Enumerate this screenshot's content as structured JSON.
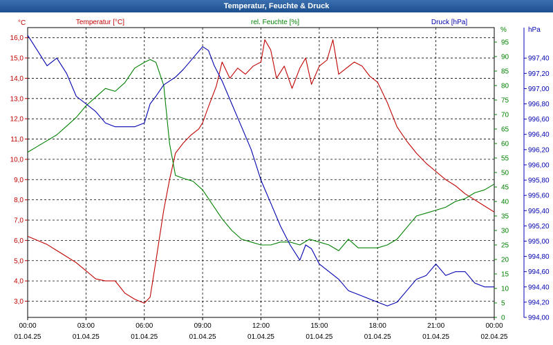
{
  "chart_data": {
    "type": "line",
    "title": "Temperatur, Feuchte & Druck",
    "x_ticks": [
      {
        "time": "00:00",
        "date": "01.04.25"
      },
      {
        "time": "03:00",
        "date": "01.04.25"
      },
      {
        "time": "06:00",
        "date": "01.04.25"
      },
      {
        "time": "09:00",
        "date": "01.04.25"
      },
      {
        "time": "12:00",
        "date": "01.04.25"
      },
      {
        "time": "15:00",
        "date": "01.04.25"
      },
      {
        "time": "18:00",
        "date": "01.04.25"
      },
      {
        "time": "21:00",
        "date": "01.04.25"
      },
      {
        "time": "00:00",
        "date": "02.04.25"
      }
    ],
    "xlim_hours": [
      0,
      24
    ],
    "grid": true,
    "axes": {
      "temperature": {
        "label": "Temperatur [°C]",
        "unit": "°C",
        "ylim": [
          2.2,
          16.5
        ],
        "color": "#c00000",
        "ticks": [
          "3,0",
          "4,0",
          "5,0",
          "6,0",
          "7,0",
          "8,0",
          "9,0",
          "10,0",
          "11,0",
          "12,0",
          "13,0",
          "14,0",
          "15,0",
          "16,0"
        ],
        "tick_values": [
          3,
          4,
          5,
          6,
          7,
          8,
          9,
          10,
          11,
          12,
          13,
          14,
          15,
          16
        ]
      },
      "humidity": {
        "label": "rel. Feuchte [%]",
        "unit": "%",
        "ylim": [
          0,
          100
        ],
        "color": "#008000",
        "ticks": [
          "0",
          "5",
          "10",
          "15",
          "20",
          "25",
          "30",
          "35",
          "40",
          "45",
          "50",
          "55",
          "60",
          "65",
          "70",
          "75",
          "80",
          "85",
          "90",
          "95"
        ],
        "tick_values": [
          0,
          5,
          10,
          15,
          20,
          25,
          30,
          35,
          40,
          45,
          50,
          55,
          60,
          65,
          70,
          75,
          80,
          85,
          90,
          95
        ]
      },
      "pressure": {
        "label": "Druck [hPa]",
        "unit": "hPa",
        "ylim": [
          994.0,
          997.8
        ],
        "color": "#0000b0",
        "ticks": [
          "994,00",
          "994,20",
          "994,40",
          "994,60",
          "994,80",
          "995,00",
          "995,20",
          "995,40",
          "995,60",
          "995,80",
          "996,00",
          "996,20",
          "996,40",
          "996,60",
          "996,80",
          "997,00",
          "997,20",
          "997,40"
        ],
        "tick_values": [
          994.0,
          994.2,
          994.4,
          994.6,
          994.8,
          995.0,
          995.2,
          995.4,
          995.6,
          995.8,
          996.0,
          996.2,
          996.4,
          996.6,
          996.8,
          997.0,
          997.2,
          997.4
        ]
      }
    },
    "series": [
      {
        "name": "Temperatur [°C]",
        "axis": "temperature",
        "color": "#c00000",
        "x": [
          0,
          0.5,
          1,
          1.5,
          2,
          2.5,
          3,
          3.5,
          4,
          4.5,
          5,
          5.5,
          6,
          6.3,
          6.6,
          7,
          7.3,
          7.6,
          8,
          8.4,
          8.8,
          9,
          9.3,
          9.7,
          10,
          10.4,
          10.8,
          11.2,
          11.6,
          12,
          12.2,
          12.5,
          12.8,
          13.2,
          13.6,
          14,
          14.3,
          14.6,
          15,
          15.4,
          15.7,
          16,
          16.4,
          16.8,
          17.2,
          17.6,
          18,
          18.5,
          19,
          19.5,
          20,
          20.5,
          21,
          21.5,
          22,
          22.5,
          23,
          23.5,
          24
        ],
        "y": [
          6.2,
          6.0,
          5.8,
          5.5,
          5.2,
          4.9,
          4.5,
          4.1,
          4.0,
          4.0,
          3.4,
          3.1,
          2.9,
          3.2,
          5.0,
          7.5,
          9.0,
          10.3,
          10.8,
          11.2,
          11.5,
          11.8,
          12.6,
          13.6,
          14.8,
          14.0,
          14.5,
          14.2,
          14.6,
          14.8,
          15.9,
          15.4,
          14.0,
          14.6,
          13.5,
          14.5,
          15.0,
          13.7,
          14.6,
          14.9,
          15.9,
          14.2,
          14.5,
          14.8,
          14.6,
          14.1,
          13.8,
          12.8,
          11.6,
          10.9,
          10.3,
          9.8,
          9.4,
          9.0,
          8.7,
          8.3,
          8.0,
          7.7,
          7.4
        ]
      },
      {
        "name": "rel. Feuchte [%]",
        "axis": "humidity",
        "color": "#008000",
        "x": [
          0,
          0.5,
          1,
          1.5,
          2,
          2.5,
          3,
          3.5,
          4,
          4.5,
          5,
          5.5,
          6,
          6.3,
          6.6,
          7,
          7.3,
          7.6,
          8,
          8.5,
          9,
          9.5,
          10,
          10.5,
          11,
          11.5,
          12,
          12.5,
          13,
          13.5,
          14,
          14.5,
          15,
          15.5,
          16,
          16.5,
          17,
          17.5,
          18,
          18.5,
          19,
          19.5,
          20,
          20.5,
          21,
          21.5,
          22,
          22.5,
          23,
          23.5,
          24
        ],
        "y": [
          57,
          59,
          61,
          63,
          66,
          69,
          73,
          76,
          79,
          78,
          81,
          86,
          88,
          89,
          88,
          80,
          60,
          49,
          48,
          47,
          44,
          39,
          34,
          30,
          27,
          26,
          25,
          25,
          26,
          26,
          25,
          27,
          26,
          25,
          23,
          27,
          24,
          24,
          24,
          25,
          27,
          31,
          35,
          36,
          37,
          38,
          40,
          41,
          43,
          44,
          46
        ]
      },
      {
        "name": "Druck [hPa]",
        "axis": "pressure",
        "color": "#0000b0",
        "x": [
          0,
          0.5,
          1,
          1.5,
          2,
          2.5,
          3,
          3.5,
          4,
          4.5,
          5,
          5.5,
          6,
          6.3,
          6.6,
          7,
          7.3,
          7.6,
          8,
          8.5,
          9,
          9.3,
          9.6,
          10,
          10.5,
          11,
          11.5,
          12,
          12.5,
          13,
          13.5,
          14,
          14.3,
          14.6,
          15,
          15.5,
          16,
          16.5,
          17,
          17.5,
          18,
          18.5,
          19,
          19.5,
          20,
          20.5,
          21,
          21.5,
          22,
          22.5,
          23,
          23.5,
          24
        ],
        "y": [
          997.7,
          997.5,
          997.3,
          997.4,
          997.2,
          996.9,
          996.8,
          996.7,
          996.55,
          996.5,
          996.5,
          996.5,
          996.55,
          996.8,
          996.9,
          997.05,
          997.1,
          997.15,
          997.25,
          997.4,
          997.55,
          997.5,
          997.3,
          997.1,
          996.8,
          996.5,
          996.2,
          995.8,
          995.5,
          995.2,
          994.95,
          994.75,
          994.95,
          994.9,
          994.7,
          994.6,
          994.5,
          994.35,
          994.3,
          994.25,
          994.2,
          994.15,
          994.2,
          994.35,
          994.5,
          994.55,
          994.7,
          994.55,
          994.6,
          994.6,
          994.45,
          994.4,
          994.4
        ]
      }
    ]
  }
}
